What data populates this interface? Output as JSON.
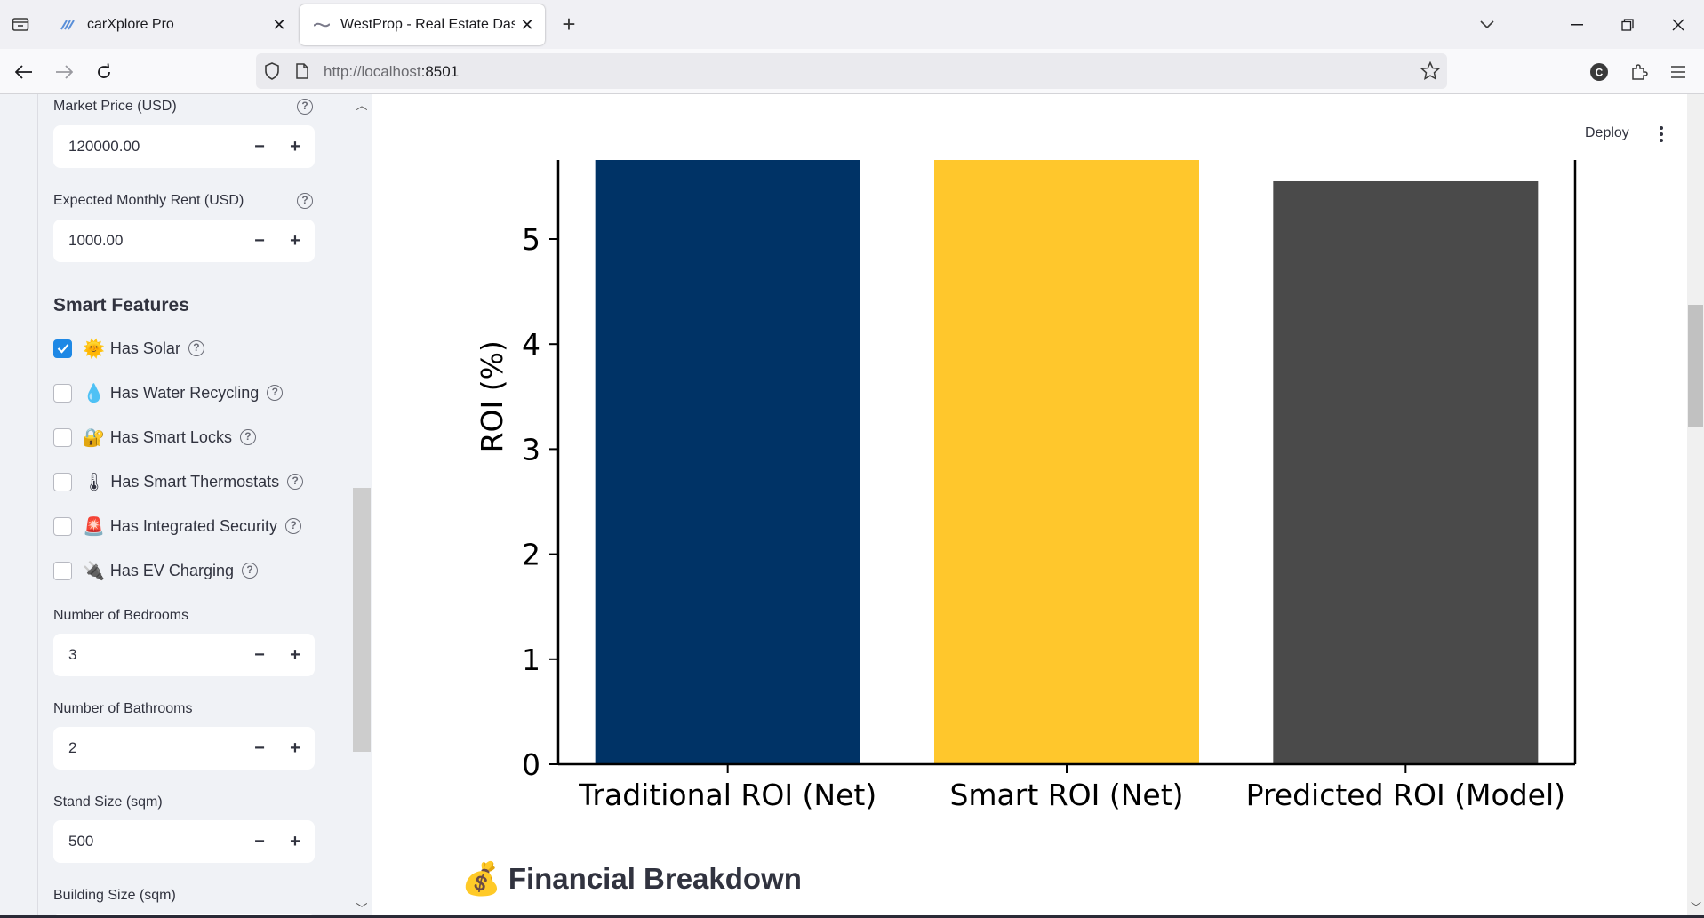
{
  "browser": {
    "tabs": [
      {
        "title": "carXplore Pro",
        "active": false
      },
      {
        "title": "WestProp - Real Estate Dashboa",
        "active": true
      }
    ],
    "url_host": "http://localhost",
    "url_port": ":8501"
  },
  "sidebar": {
    "market_price": {
      "label": "Market Price (USD)",
      "value": "120000.00"
    },
    "monthly_rent": {
      "label": "Expected Monthly Rent (USD)",
      "value": "1000.00"
    },
    "smart_features_title": "Smart Features",
    "features": [
      {
        "emoji": "🌞",
        "label": "Has Solar",
        "checked": true
      },
      {
        "emoji": "💧",
        "label": "Has Water Recycling",
        "checked": false
      },
      {
        "emoji": "🔐",
        "label": "Has Smart Locks",
        "checked": false
      },
      {
        "emoji": "🌡",
        "label": "Has Smart Thermostats",
        "checked": false
      },
      {
        "emoji": "🚨",
        "label": "Has Integrated Security",
        "checked": false
      },
      {
        "emoji": "🔌",
        "label": "Has EV Charging",
        "checked": false
      }
    ],
    "bedrooms": {
      "label": "Number of Bedrooms",
      "value": "3"
    },
    "bathrooms": {
      "label": "Number of Bathrooms",
      "value": "2"
    },
    "stand_size": {
      "label": "Stand Size (sqm)",
      "value": "500"
    },
    "building_size": {
      "label": "Building Size (sqm)"
    },
    "minus": "−",
    "plus": "+",
    "help": "?"
  },
  "header": {
    "deploy_label": "Deploy"
  },
  "chart_data": {
    "type": "bar",
    "categories": [
      "Traditional ROI (Net)",
      "Smart ROI (Net)",
      "Predicted ROI (Model)"
    ],
    "values": [
      5.8,
      5.8,
      5.55
    ],
    "colors": [
      "#003366",
      "#ffc72c",
      "#4a4a4a"
    ],
    "ylabel": "ROI (%)",
    "yticks": [
      0,
      1,
      2,
      3,
      4,
      5
    ],
    "ylim_visible": [
      0,
      5.76
    ],
    "note": "top of chart cropped by scroll; first two bars extend beyond visible area"
  },
  "financial_heading": {
    "emoji": "💰",
    "text": "Financial Breakdown"
  }
}
